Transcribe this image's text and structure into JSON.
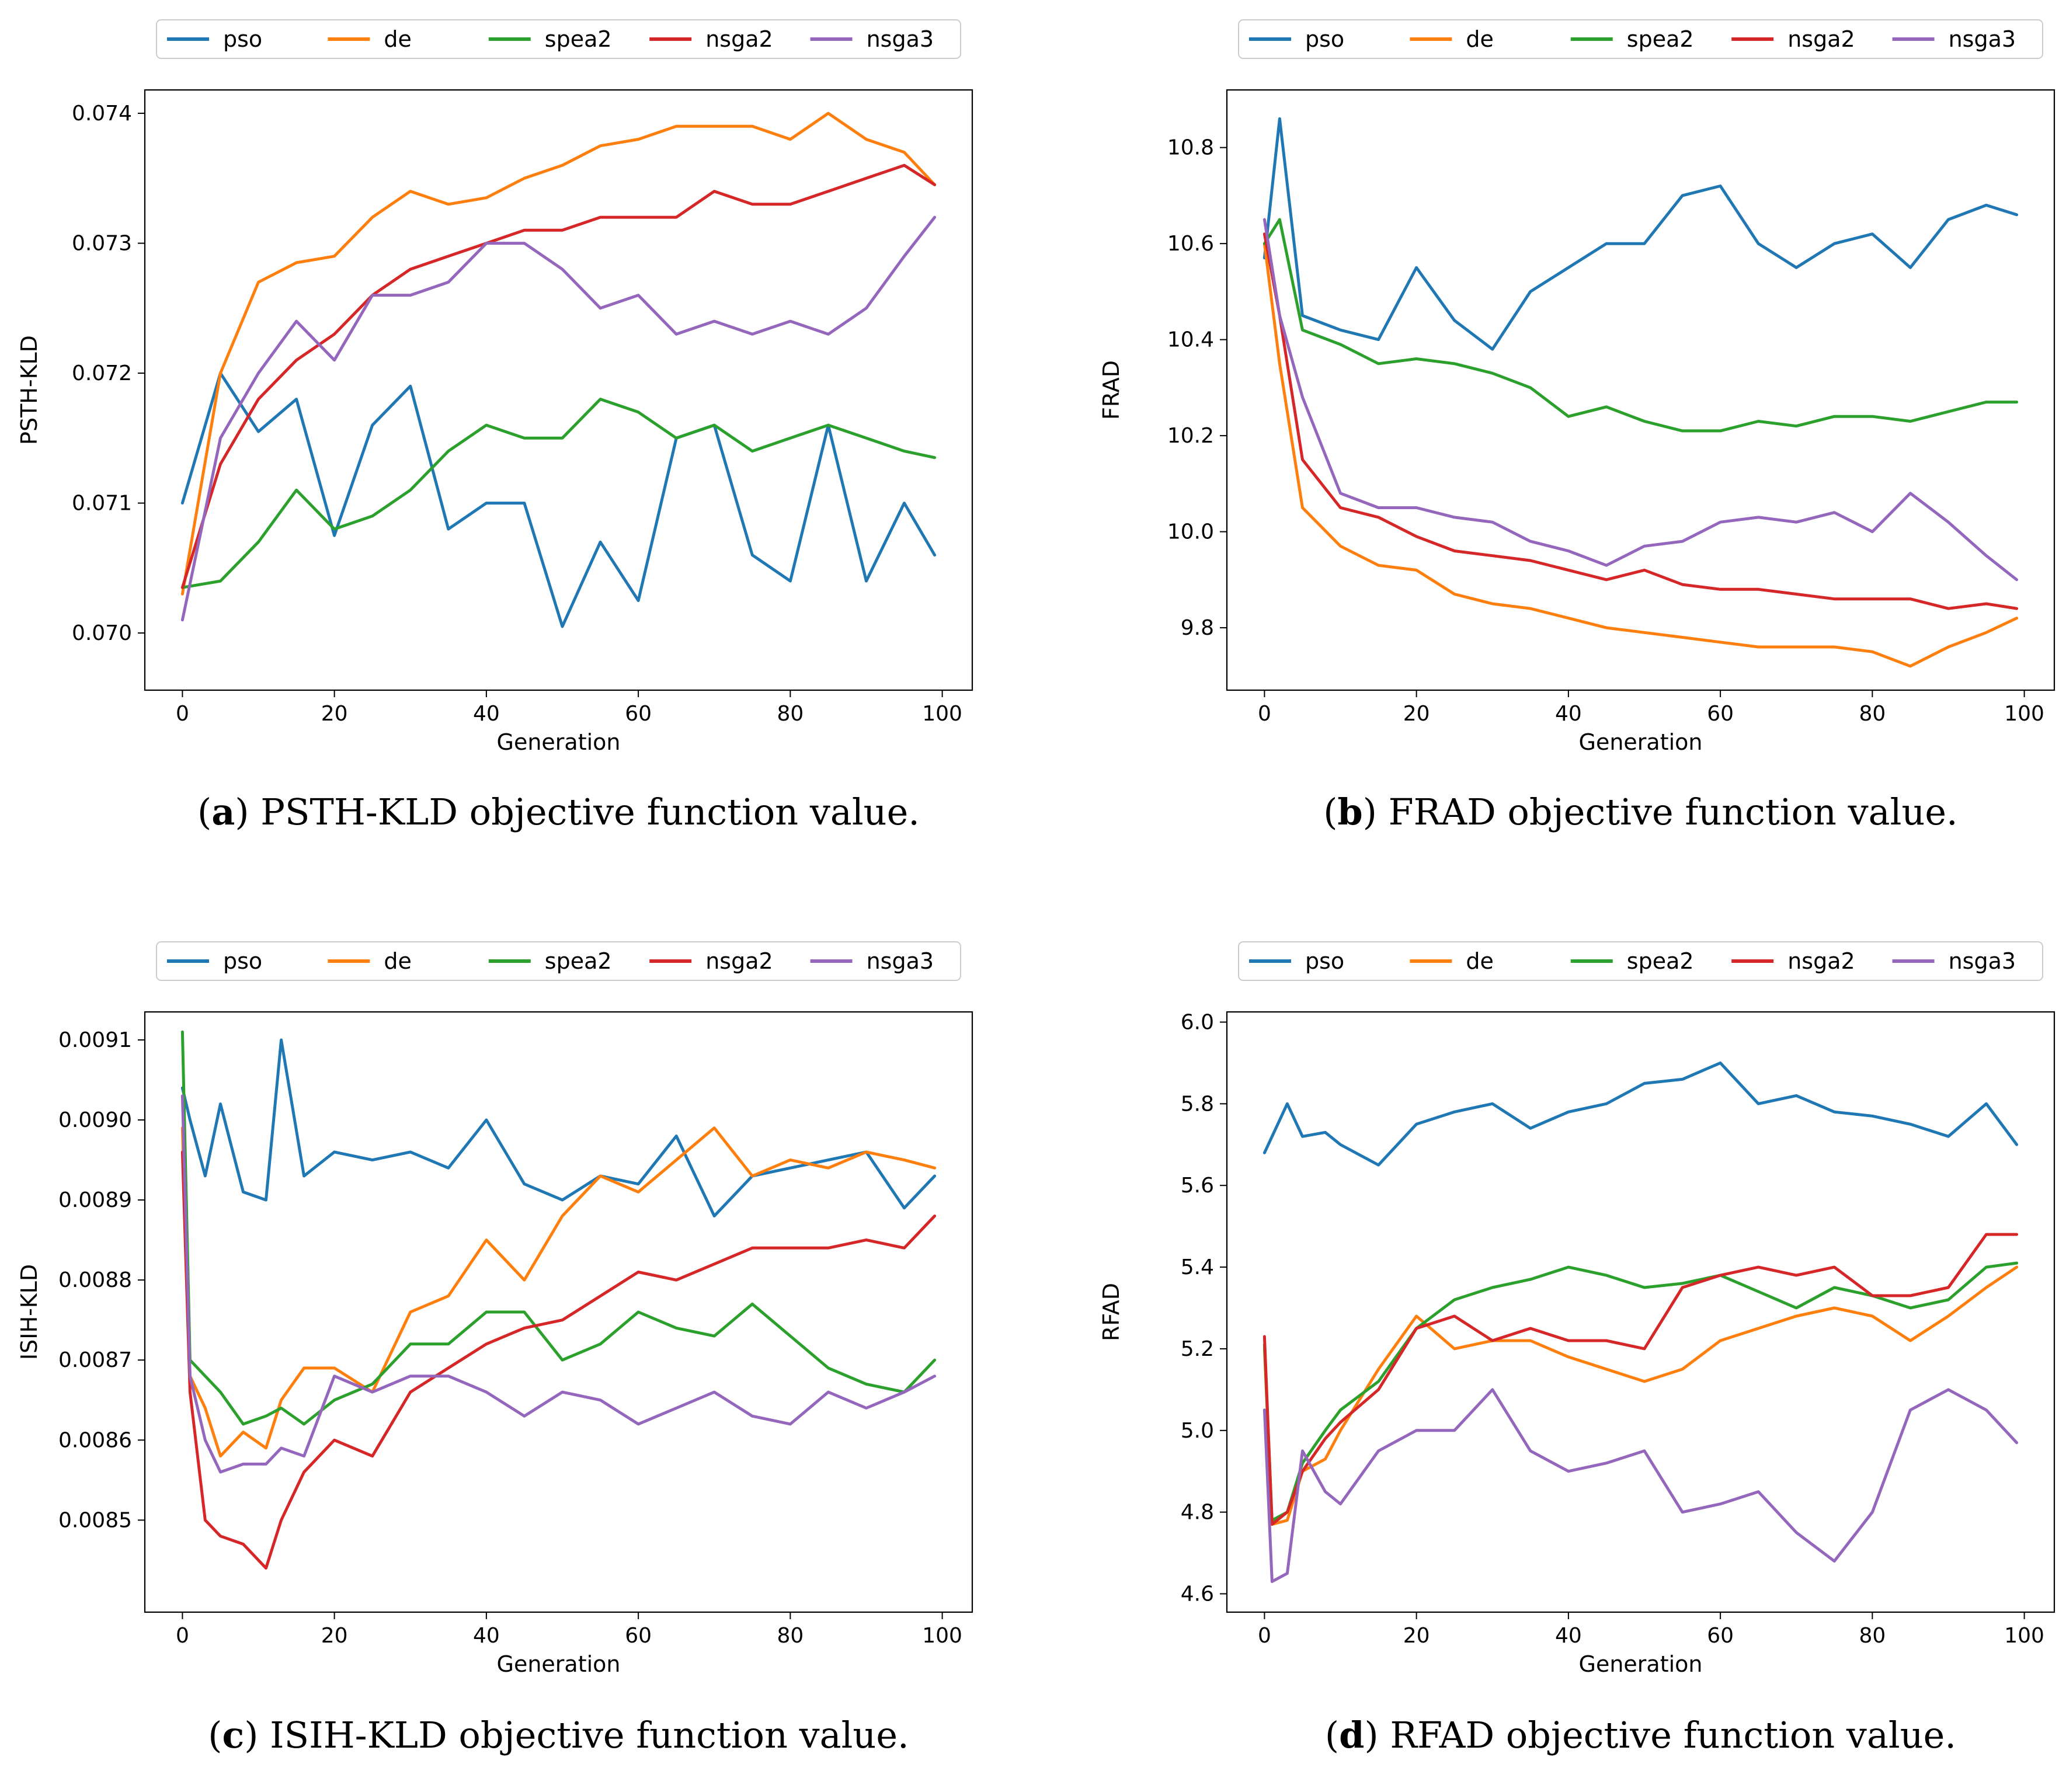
{
  "series_colors": {
    "pso": "#1f77b4",
    "de": "#ff7f0e",
    "spea2": "#2ca02c",
    "nsga2": "#d62728",
    "nsga3": "#9467bd"
  },
  "chart_data": [
    {
      "type": "line",
      "panel": "a",
      "caption_letter": "a",
      "caption_text": "PSTH-KLD objective function value.",
      "xlabel": "Generation",
      "ylabel": "PSTH-KLD",
      "xlim": [
        -4.95,
        103.95
      ],
      "ylim": [
        0.06956,
        0.07418
      ],
      "xticks": [
        0,
        20,
        40,
        60,
        80,
        100
      ],
      "yticks": [
        0.07,
        0.071,
        0.072,
        0.073,
        0.074
      ],
      "ytick_labels": [
        "0.070",
        "0.071",
        "0.072",
        "0.073",
        "0.074"
      ],
      "legend_position": "top",
      "grid": false,
      "x": [
        0,
        5,
        10,
        15,
        20,
        25,
        30,
        35,
        40,
        45,
        50,
        55,
        60,
        65,
        70,
        75,
        80,
        85,
        90,
        95,
        99
      ],
      "series": [
        {
          "name": "pso",
          "values": [
            0.071,
            0.072,
            0.07155,
            0.0718,
            0.07075,
            0.0716,
            0.0719,
            0.0708,
            0.071,
            0.071,
            0.07005,
            0.0707,
            0.07025,
            0.0715,
            0.0716,
            0.0706,
            0.0704,
            0.0716,
            0.0704,
            0.071,
            0.0706
          ]
        },
        {
          "name": "de",
          "values": [
            0.0703,
            0.072,
            0.0727,
            0.07285,
            0.0729,
            0.0732,
            0.0734,
            0.0733,
            0.07335,
            0.0735,
            0.0736,
            0.07375,
            0.0738,
            0.0739,
            0.0739,
            0.0739,
            0.0738,
            0.074,
            0.0738,
            0.0737,
            0.07345
          ]
        },
        {
          "name": "spea2",
          "values": [
            0.07035,
            0.0704,
            0.0707,
            0.0711,
            0.0708,
            0.0709,
            0.0711,
            0.0714,
            0.0716,
            0.0715,
            0.0715,
            0.0718,
            0.0717,
            0.0715,
            0.0716,
            0.0714,
            0.0715,
            0.0716,
            0.0715,
            0.0714,
            0.07135
          ]
        },
        {
          "name": "nsga2",
          "values": [
            0.07035,
            0.0713,
            0.0718,
            0.0721,
            0.0723,
            0.0726,
            0.0728,
            0.0729,
            0.073,
            0.0731,
            0.0731,
            0.0732,
            0.0732,
            0.0732,
            0.0734,
            0.0733,
            0.0733,
            0.0734,
            0.0735,
            0.0736,
            0.07345
          ]
        },
        {
          "name": "nsga3",
          "values": [
            0.0701,
            0.0715,
            0.072,
            0.0724,
            0.0721,
            0.0726,
            0.0726,
            0.0727,
            0.073,
            0.073,
            0.0728,
            0.0725,
            0.0726,
            0.0723,
            0.0724,
            0.0723,
            0.0724,
            0.0723,
            0.0725,
            0.0729,
            0.0732
          ]
        }
      ]
    },
    {
      "type": "line",
      "panel": "b",
      "caption_letter": "b",
      "caption_text": "FRAD objective function value.",
      "xlabel": "Generation",
      "ylabel": "FRAD",
      "xlim": [
        -4.95,
        103.95
      ],
      "ylim": [
        9.67,
        10.92
      ],
      "xticks": [
        0,
        20,
        40,
        60,
        80,
        100
      ],
      "yticks": [
        9.8,
        10.0,
        10.2,
        10.4,
        10.6,
        10.8
      ],
      "ytick_labels": [
        "9.8",
        "10.0",
        "10.2",
        "10.4",
        "10.6",
        "10.8"
      ],
      "legend_position": "top",
      "grid": false,
      "x": [
        0,
        2,
        5,
        10,
        15,
        20,
        25,
        30,
        35,
        40,
        45,
        50,
        55,
        60,
        65,
        70,
        75,
        80,
        85,
        90,
        95,
        99
      ],
      "series": [
        {
          "name": "pso",
          "values": [
            10.57,
            10.86,
            10.45,
            10.42,
            10.4,
            10.55,
            10.44,
            10.38,
            10.5,
            10.55,
            10.6,
            10.6,
            10.7,
            10.72,
            10.6,
            10.55,
            10.6,
            10.62,
            10.55,
            10.65,
            10.68,
            10.66
          ]
        },
        {
          "name": "de",
          "values": [
            10.6,
            10.35,
            10.05,
            9.97,
            9.93,
            9.92,
            9.87,
            9.85,
            9.84,
            9.82,
            9.8,
            9.79,
            9.78,
            9.77,
            9.76,
            9.76,
            9.76,
            9.75,
            9.72,
            9.76,
            9.79,
            9.82
          ]
        },
        {
          "name": "spea2",
          "values": [
            10.6,
            10.65,
            10.42,
            10.39,
            10.35,
            10.36,
            10.35,
            10.33,
            10.3,
            10.24,
            10.26,
            10.23,
            10.21,
            10.21,
            10.23,
            10.22,
            10.24,
            10.24,
            10.23,
            10.25,
            10.27,
            10.27
          ]
        },
        {
          "name": "nsga2",
          "values": [
            10.62,
            10.45,
            10.15,
            10.05,
            10.03,
            9.99,
            9.96,
            9.95,
            9.94,
            9.92,
            9.9,
            9.92,
            9.89,
            9.88,
            9.88,
            9.87,
            9.86,
            9.86,
            9.86,
            9.84,
            9.85,
            9.84
          ]
        },
        {
          "name": "nsga3",
          "values": [
            10.65,
            10.45,
            10.28,
            10.08,
            10.05,
            10.05,
            10.03,
            10.02,
            9.98,
            9.96,
            9.93,
            9.97,
            9.98,
            10.02,
            10.03,
            10.02,
            10.04,
            10.0,
            10.08,
            10.02,
            9.95,
            9.9
          ]
        }
      ]
    },
    {
      "type": "line",
      "panel": "c",
      "caption_letter": "c",
      "caption_text": "ISIH-KLD objective function value.",
      "xlabel": "Generation",
      "ylabel": "ISIH-KLD",
      "xlim": [
        -4.95,
        103.95
      ],
      "ylim": [
        0.008385,
        0.009135
      ],
      "xticks": [
        0,
        20,
        40,
        60,
        80,
        100
      ],
      "yticks": [
        0.0085,
        0.0086,
        0.0087,
        0.0088,
        0.0089,
        0.009,
        0.0091
      ],
      "ytick_labels": [
        "0.0085",
        "0.0086",
        "0.0087",
        "0.0088",
        "0.0089",
        "0.0090",
        "0.0091"
      ],
      "legend_position": "top",
      "grid": false,
      "x": [
        0,
        1,
        3,
        5,
        8,
        11,
        13,
        16,
        20,
        25,
        30,
        35,
        40,
        45,
        50,
        55,
        60,
        65,
        70,
        75,
        80,
        85,
        90,
        95,
        99
      ],
      "series": [
        {
          "name": "pso",
          "values": [
            0.00904,
            0.009,
            0.00893,
            0.00902,
            0.00891,
            0.0089,
            0.0091,
            0.00893,
            0.00896,
            0.00895,
            0.00896,
            0.00894,
            0.009,
            0.00892,
            0.0089,
            0.00893,
            0.00892,
            0.00898,
            0.00888,
            0.00893,
            0.00894,
            0.00895,
            0.00896,
            0.00889,
            0.00893
          ]
        },
        {
          "name": "de",
          "values": [
            0.00899,
            0.00868,
            0.00864,
            0.00858,
            0.00861,
            0.00859,
            0.00865,
            0.00869,
            0.00869,
            0.00866,
            0.00876,
            0.00878,
            0.00885,
            0.0088,
            0.00888,
            0.00893,
            0.00891,
            0.00895,
            0.00899,
            0.00893,
            0.00895,
            0.00894,
            0.00896,
            0.00895,
            0.00894
          ]
        },
        {
          "name": "spea2",
          "values": [
            0.00911,
            0.0087,
            0.00868,
            0.00866,
            0.00862,
            0.00863,
            0.00864,
            0.00862,
            0.00865,
            0.00867,
            0.00872,
            0.00872,
            0.00876,
            0.00876,
            0.0087,
            0.00872,
            0.00876,
            0.00874,
            0.00873,
            0.00877,
            0.00873,
            0.00869,
            0.00867,
            0.00866,
            0.0087
          ]
        },
        {
          "name": "nsga2",
          "values": [
            0.00896,
            0.00866,
            0.0085,
            0.00848,
            0.00847,
            0.00844,
            0.0085,
            0.00856,
            0.0086,
            0.00858,
            0.00866,
            0.00869,
            0.00872,
            0.00874,
            0.00875,
            0.00878,
            0.00881,
            0.0088,
            0.00882,
            0.00884,
            0.00884,
            0.00884,
            0.00885,
            0.00884,
            0.00888
          ]
        },
        {
          "name": "nsga3",
          "values": [
            0.00903,
            0.00868,
            0.0086,
            0.00856,
            0.00857,
            0.00857,
            0.00859,
            0.00858,
            0.00868,
            0.00866,
            0.00868,
            0.00868,
            0.00866,
            0.00863,
            0.00866,
            0.00865,
            0.00862,
            0.00864,
            0.00866,
            0.00863,
            0.00862,
            0.00866,
            0.00864,
            0.00866,
            0.00868
          ]
        }
      ]
    },
    {
      "type": "line",
      "panel": "d",
      "caption_letter": "d",
      "caption_text": "RFAD objective function value.",
      "xlabel": "Generation",
      "ylabel": "RFAD",
      "xlim": [
        -4.95,
        103.95
      ],
      "ylim": [
        4.555,
        6.025
      ],
      "xticks": [
        0,
        20,
        40,
        60,
        80,
        100
      ],
      "yticks": [
        4.6,
        4.8,
        5.0,
        5.2,
        5.4,
        5.6,
        5.8,
        6.0
      ],
      "ytick_labels": [
        "4.6",
        "4.8",
        "5.0",
        "5.2",
        "5.4",
        "5.6",
        "5.8",
        "6.0"
      ],
      "legend_position": "top",
      "grid": false,
      "x": [
        0,
        1,
        3,
        5,
        8,
        10,
        15,
        20,
        25,
        30,
        35,
        40,
        45,
        50,
        55,
        60,
        65,
        70,
        75,
        80,
        85,
        90,
        95,
        99
      ],
      "series": [
        {
          "name": "pso",
          "values": [
            5.68,
            5.72,
            5.8,
            5.72,
            5.73,
            5.7,
            5.65,
            5.75,
            5.78,
            5.8,
            5.74,
            5.78,
            5.8,
            5.85,
            5.86,
            5.9,
            5.8,
            5.82,
            5.78,
            5.77,
            5.75,
            5.72,
            5.8,
            5.7
          ]
        },
        {
          "name": "de",
          "values": [
            5.2,
            4.77,
            4.78,
            4.9,
            4.93,
            5.0,
            5.15,
            5.28,
            5.2,
            5.22,
            5.22,
            5.18,
            5.15,
            5.12,
            5.15,
            5.22,
            5.25,
            5.28,
            5.3,
            5.28,
            5.22,
            5.28,
            5.35,
            5.4
          ]
        },
        {
          "name": "spea2",
          "values": [
            5.21,
            4.78,
            4.8,
            4.92,
            5.0,
            5.05,
            5.12,
            5.25,
            5.32,
            5.35,
            5.37,
            5.4,
            5.38,
            5.35,
            5.36,
            5.38,
            5.34,
            5.3,
            5.35,
            5.33,
            5.3,
            5.32,
            5.4,
            5.41
          ]
        },
        {
          "name": "nsga2",
          "values": [
            5.23,
            4.77,
            4.8,
            4.9,
            4.98,
            5.02,
            5.1,
            5.25,
            5.28,
            5.22,
            5.25,
            5.22,
            5.22,
            5.2,
            5.35,
            5.38,
            5.4,
            5.38,
            5.4,
            5.33,
            5.33,
            5.35,
            5.48,
            5.48
          ]
        },
        {
          "name": "nsga3",
          "values": [
            5.05,
            4.63,
            4.65,
            4.95,
            4.85,
            4.82,
            4.95,
            5.0,
            5.0,
            5.1,
            4.95,
            4.9,
            4.92,
            4.95,
            4.8,
            4.82,
            4.85,
            4.75,
            4.68,
            4.8,
            5.05,
            5.1,
            5.05,
            4.97
          ]
        }
      ]
    }
  ]
}
